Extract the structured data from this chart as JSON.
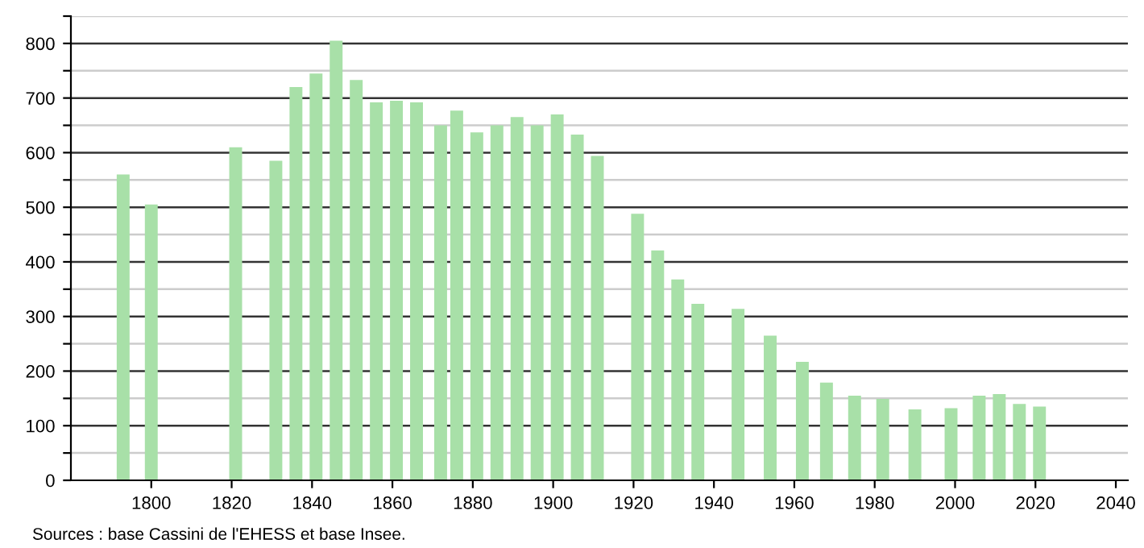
{
  "chart_data": {
    "type": "bar",
    "x": [
      1793,
      1800,
      1821,
      1831,
      1836,
      1841,
      1846,
      1851,
      1856,
      1861,
      1866,
      1872,
      1876,
      1881,
      1886,
      1891,
      1896,
      1901,
      1906,
      1911,
      1921,
      1926,
      1931,
      1936,
      1946,
      1954,
      1962,
      1968,
      1975,
      1982,
      1990,
      1999,
      2006,
      2011,
      2016,
      2021
    ],
    "values": [
      560,
      505,
      610,
      585,
      720,
      745,
      805,
      733,
      692,
      695,
      692,
      650,
      677,
      637,
      650,
      665,
      650,
      670,
      633,
      594,
      488,
      421,
      368,
      323,
      314,
      265,
      217,
      179,
      155,
      149,
      130,
      132,
      155,
      158,
      140,
      135
    ],
    "color": "#a8e0a8",
    "xlim": [
      1780,
      2043
    ],
    "ylim": [
      0,
      850
    ],
    "xticks": [
      1800,
      1820,
      1840,
      1860,
      1880,
      1900,
      1920,
      1940,
      1960,
      1980,
      2000,
      2020,
      2040
    ],
    "yticks": [
      0,
      {
        "value": 50,
        "label": null
      },
      100,
      {
        "value": 150,
        "label": null
      },
      200,
      {
        "value": 250,
        "label": null
      },
      300,
      {
        "value": 350,
        "label": null
      },
      400,
      {
        "value": 450,
        "label": null
      },
      500,
      {
        "value": 550,
        "label": null
      },
      600,
      {
        "value": 650,
        "label": null
      },
      700,
      {
        "value": 750,
        "label": null
      },
      800,
      {
        "value": 850,
        "label": null
      }
    ],
    "grid": "y",
    "annotations": [
      "Sources : base Cassini de l'EHESS et base Insee."
    ]
  }
}
